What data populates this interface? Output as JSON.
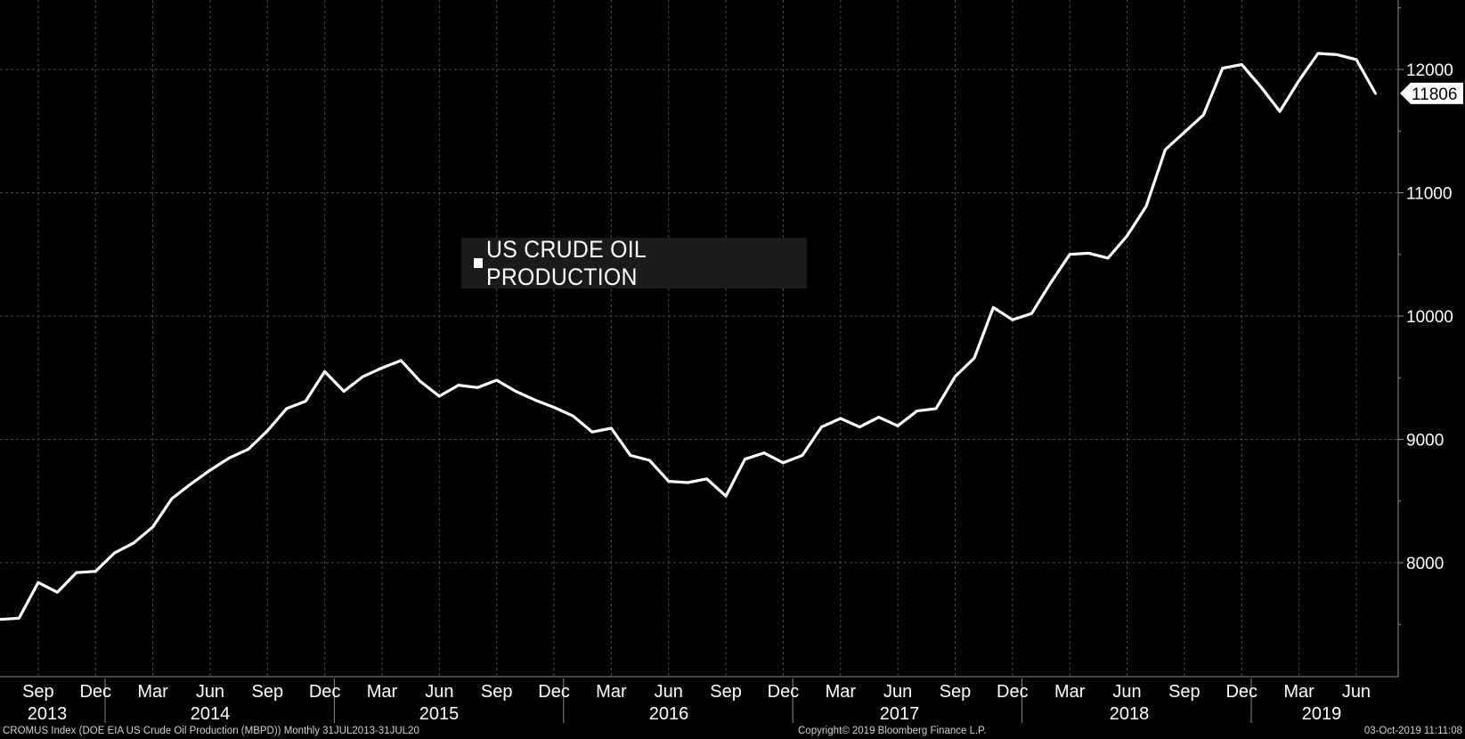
{
  "chart_data": {
    "type": "line",
    "title": "",
    "xlabel": "",
    "ylabel": "",
    "legend": {
      "placement": "center-left",
      "entries": [
        "US CRUDE OIL PRODUCTION"
      ]
    },
    "ylim": [
      7100,
      12550
    ],
    "yticks": [
      8000,
      9000,
      10000,
      11000,
      12000
    ],
    "ytick_labels": [
      "8000",
      "9000",
      "10000",
      "11000",
      "12000"
    ],
    "grid": true,
    "last_value_label": "11806",
    "month_ticks": [
      {
        "label": "Sep",
        "date": "2013-09"
      },
      {
        "label": "Dec",
        "date": "2013-12"
      },
      {
        "label": "Mar",
        "date": "2014-03"
      },
      {
        "label": "Jun",
        "date": "2014-06"
      },
      {
        "label": "Sep",
        "date": "2014-09"
      },
      {
        "label": "Dec",
        "date": "2014-12"
      },
      {
        "label": "Mar",
        "date": "2015-03"
      },
      {
        "label": "Jun",
        "date": "2015-06"
      },
      {
        "label": "Sep",
        "date": "2015-09"
      },
      {
        "label": "Dec",
        "date": "2015-12"
      },
      {
        "label": "Mar",
        "date": "2016-03"
      },
      {
        "label": "Jun",
        "date": "2016-06"
      },
      {
        "label": "Sep",
        "date": "2016-09"
      },
      {
        "label": "Dec",
        "date": "2016-12"
      },
      {
        "label": "Mar",
        "date": "2017-03"
      },
      {
        "label": "Jun",
        "date": "2017-06"
      },
      {
        "label": "Sep",
        "date": "2017-09"
      },
      {
        "label": "Dec",
        "date": "2017-12"
      },
      {
        "label": "Mar",
        "date": "2018-03"
      },
      {
        "label": "Jun",
        "date": "2018-06"
      },
      {
        "label": "Sep",
        "date": "2018-09"
      },
      {
        "label": "Dec",
        "date": "2018-12"
      },
      {
        "label": "Mar",
        "date": "2019-03"
      },
      {
        "label": "Jun",
        "date": "2019-06"
      }
    ],
    "year_labels": [
      "2013",
      "2014",
      "2015",
      "2016",
      "2017",
      "2018",
      "2019"
    ],
    "series": [
      {
        "name": "US CRUDE OIL PRODUCTION",
        "color": "#ffffff",
        "x": [
          "2013-07",
          "2013-08",
          "2013-09",
          "2013-10",
          "2013-11",
          "2013-12",
          "2014-01",
          "2014-02",
          "2014-03",
          "2014-04",
          "2014-05",
          "2014-06",
          "2014-07",
          "2014-08",
          "2014-09",
          "2014-10",
          "2014-11",
          "2014-12",
          "2015-01",
          "2015-02",
          "2015-03",
          "2015-04",
          "2015-05",
          "2015-06",
          "2015-07",
          "2015-08",
          "2015-09",
          "2015-10",
          "2015-11",
          "2015-12",
          "2016-01",
          "2016-02",
          "2016-03",
          "2016-04",
          "2016-05",
          "2016-06",
          "2016-07",
          "2016-08",
          "2016-09",
          "2016-10",
          "2016-11",
          "2016-12",
          "2017-01",
          "2017-02",
          "2017-03",
          "2017-04",
          "2017-05",
          "2017-06",
          "2017-07",
          "2017-08",
          "2017-09",
          "2017-10",
          "2017-11",
          "2017-12",
          "2018-01",
          "2018-02",
          "2018-03",
          "2018-04",
          "2018-05",
          "2018-06",
          "2018-07",
          "2018-08",
          "2018-09",
          "2018-10",
          "2018-11",
          "2018-12",
          "2019-01",
          "2019-02",
          "2019-03",
          "2019-04",
          "2019-05",
          "2019-06",
          "2019-07"
        ],
        "values": [
          7540,
          7550,
          7840,
          7760,
          7920,
          7930,
          8080,
          8160,
          8290,
          8520,
          8640,
          8750,
          8850,
          8920,
          9070,
          9250,
          9310,
          9550,
          9390,
          9510,
          9580,
          9640,
          9470,
          9350,
          9440,
          9420,
          9480,
          9390,
          9320,
          9260,
          9190,
          9060,
          9090,
          8870,
          8830,
          8660,
          8650,
          8680,
          8540,
          8840,
          8890,
          8810,
          8870,
          9100,
          9170,
          9100,
          9180,
          9110,
          9230,
          9250,
          9510,
          9660,
          10070,
          9970,
          10020,
          10270,
          10500,
          10510,
          10470,
          10650,
          10890,
          11350,
          11490,
          11630,
          12010,
          12040,
          11860,
          11660,
          11910,
          12130,
          12120,
          12080,
          11806
        ]
      }
    ]
  },
  "footer": {
    "left": "CROMUS Index (DOE EIA US Crude Oil Production (MBPD))  Monthly 31JUL2013-31JUL20",
    "center": "Copyright© 2019 Bloomberg Finance L.P.",
    "right": "03-Oct-2019 11:11:08"
  }
}
